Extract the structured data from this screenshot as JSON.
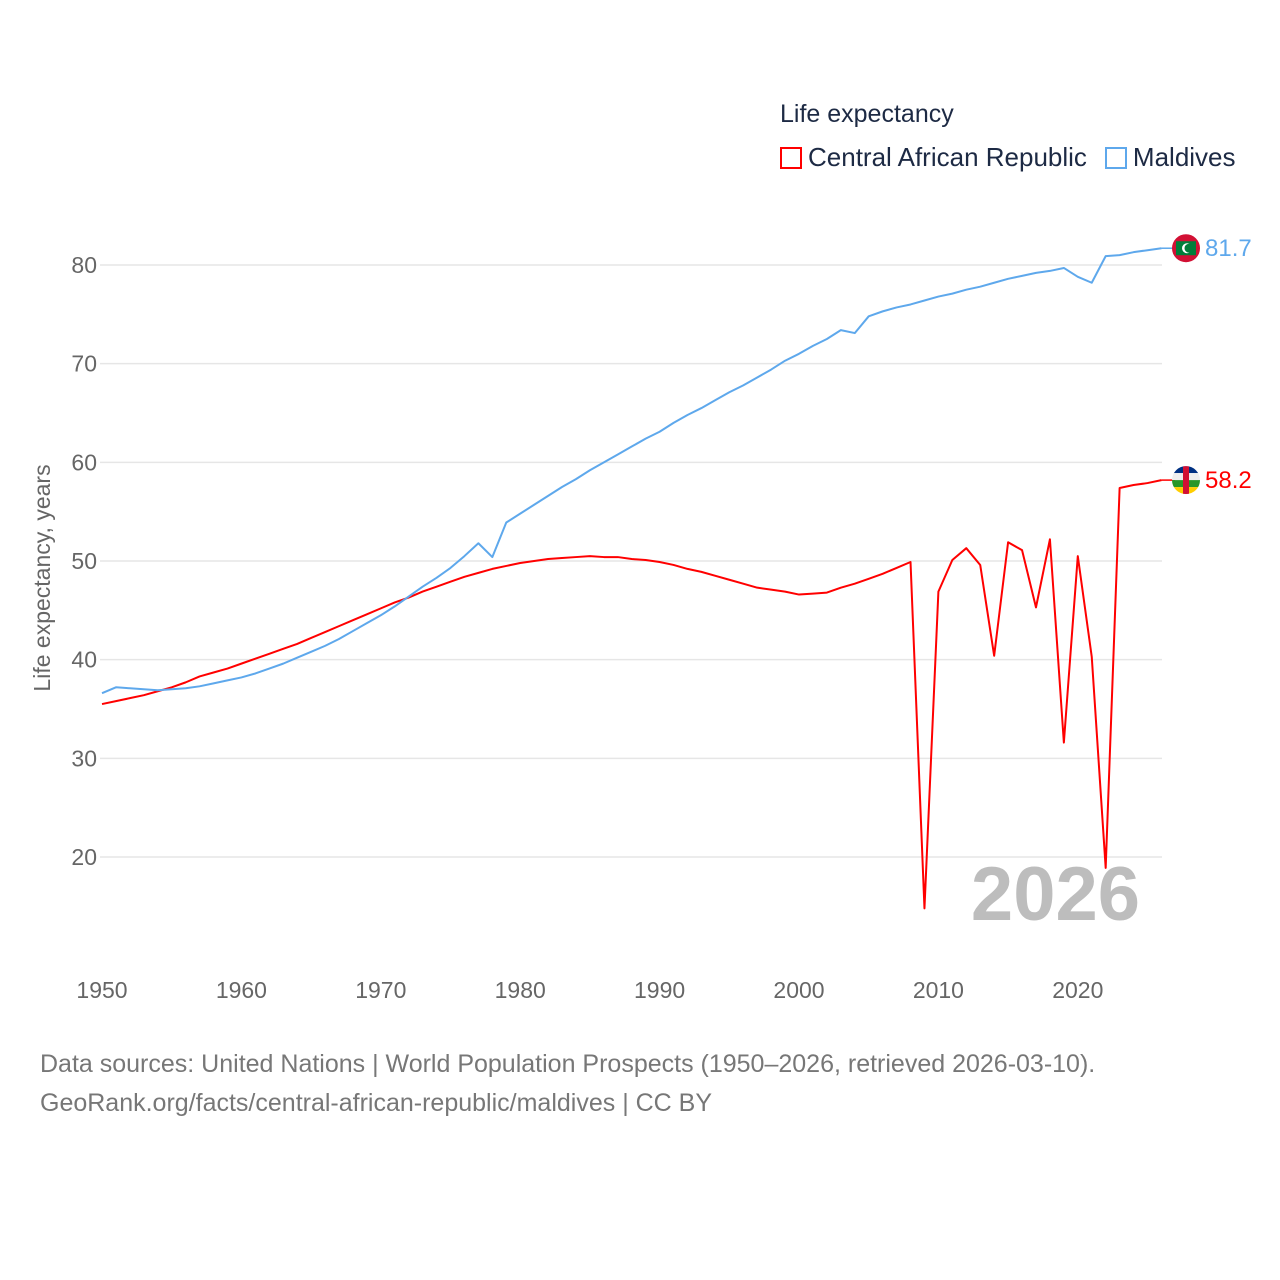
{
  "chart_data": {
    "type": "line",
    "title": "Life expectancy",
    "ylabel": "Life expectancy, years",
    "xlabel": "",
    "xlim": [
      1950,
      2026
    ],
    "ylim": [
      11,
      85
    ],
    "xticks": [
      "1950",
      "1960",
      "1970",
      "1980",
      "1990",
      "2000",
      "2010",
      "2020"
    ],
    "yticks": [
      "20",
      "30",
      "40",
      "50",
      "60",
      "70",
      "80"
    ],
    "grid": true,
    "legend_position": "top-right",
    "current_year": "2026",
    "series": [
      {
        "name": "Central African Republic",
        "color": "#ff0000",
        "end_label": "58.2",
        "values": [
          35.5,
          35.8,
          36.1,
          36.4,
          36.8,
          37.2,
          37.7,
          38.3,
          38.7,
          39.1,
          39.6,
          40.1,
          40.6,
          41.1,
          41.6,
          42.2,
          42.8,
          43.4,
          44.0,
          44.6,
          45.2,
          45.8,
          46.3,
          46.9,
          47.4,
          47.9,
          48.4,
          48.8,
          49.2,
          49.5,
          49.8,
          50.0,
          50.2,
          50.3,
          50.4,
          50.5,
          50.4,
          50.4,
          50.2,
          50.1,
          49.9,
          49.6,
          49.2,
          48.9,
          48.5,
          48.1,
          47.7,
          47.3,
          47.1,
          46.9,
          46.6,
          46.7,
          46.8,
          47.3,
          47.7,
          48.2,
          48.7,
          49.3,
          49.9,
          14.8,
          46.9,
          50.1,
          51.3,
          49.6,
          40.4,
          51.9,
          51.1,
          45.3,
          52.2,
          31.6,
          50.5,
          40.3,
          18.9,
          57.4,
          57.7,
          57.9,
          58.2
        ]
      },
      {
        "name": "Maldives",
        "color": "#5ea8ec",
        "end_label": "81.7",
        "values": [
          36.6,
          37.2,
          37.1,
          37.0,
          36.9,
          37.0,
          37.1,
          37.3,
          37.6,
          37.9,
          38.2,
          38.6,
          39.1,
          39.6,
          40.2,
          40.8,
          41.4,
          42.1,
          42.9,
          43.7,
          44.5,
          45.4,
          46.4,
          47.4,
          48.3,
          49.3,
          50.5,
          51.8,
          50.4,
          53.9,
          54.8,
          55.7,
          56.6,
          57.5,
          58.3,
          59.2,
          60.0,
          60.8,
          61.6,
          62.4,
          63.1,
          64.0,
          64.8,
          65.5,
          66.3,
          67.1,
          67.8,
          68.6,
          69.4,
          70.3,
          71.0,
          71.8,
          72.5,
          73.4,
          73.1,
          74.8,
          75.3,
          75.7,
          76.0,
          76.4,
          76.8,
          77.1,
          77.5,
          77.8,
          78.2,
          78.6,
          78.9,
          79.2,
          79.4,
          79.7,
          78.8,
          78.2,
          80.9,
          81.0,
          81.3,
          81.5,
          81.7
        ]
      }
    ]
  },
  "footer": {
    "line1": "Data sources: United Nations | World Population Prospects (1950–2026, retrieved 2026-03-10).",
    "line2": "GeoRank.org/facts/central-african-republic/maldives | CC BY"
  }
}
